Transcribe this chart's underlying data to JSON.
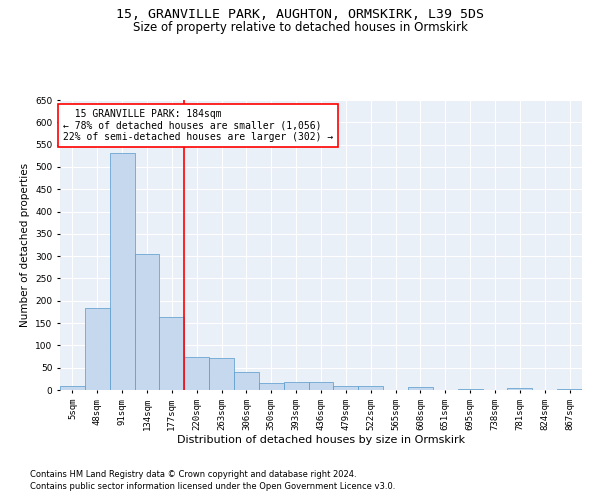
{
  "title1": "15, GRANVILLE PARK, AUGHTON, ORMSKIRK, L39 5DS",
  "title2": "Size of property relative to detached houses in Ormskirk",
  "xlabel": "Distribution of detached houses by size in Ormskirk",
  "ylabel": "Number of detached properties",
  "footnote1": "Contains HM Land Registry data © Crown copyright and database right 2024.",
  "footnote2": "Contains public sector information licensed under the Open Government Licence v3.0.",
  "bar_labels": [
    "5sqm",
    "48sqm",
    "91sqm",
    "134sqm",
    "177sqm",
    "220sqm",
    "263sqm",
    "306sqm",
    "350sqm",
    "393sqm",
    "436sqm",
    "479sqm",
    "522sqm",
    "565sqm",
    "608sqm",
    "651sqm",
    "695sqm",
    "738sqm",
    "781sqm",
    "824sqm",
    "867sqm"
  ],
  "bar_values": [
    8,
    183,
    532,
    305,
    163,
    73,
    72,
    40,
    15,
    18,
    18,
    10,
    8,
    0,
    6,
    0,
    3,
    0,
    4,
    0,
    3
  ],
  "bar_color": "#c5d8ed",
  "bar_edge_color": "#5599cc",
  "vline_bin": 4.5,
  "vline_color": "red",
  "annotation_line1": "  15 GRANVILLE PARK: 184sqm",
  "annotation_line2": "← 78% of detached houses are smaller (1,056)",
  "annotation_line3": "22% of semi-detached houses are larger (302) →",
  "annotation_box_color": "white",
  "annotation_box_edge_color": "red",
  "ylim": [
    0,
    650
  ],
  "yticks": [
    0,
    50,
    100,
    150,
    200,
    250,
    300,
    350,
    400,
    450,
    500,
    550,
    600,
    650
  ],
  "background_color": "#eaf0f8",
  "grid_color": "white",
  "title1_fontsize": 9.5,
  "title2_fontsize": 8.5,
  "xlabel_fontsize": 8,
  "ylabel_fontsize": 7.5,
  "tick_fontsize": 6.5,
  "annotation_fontsize": 7,
  "footnote_fontsize": 6
}
